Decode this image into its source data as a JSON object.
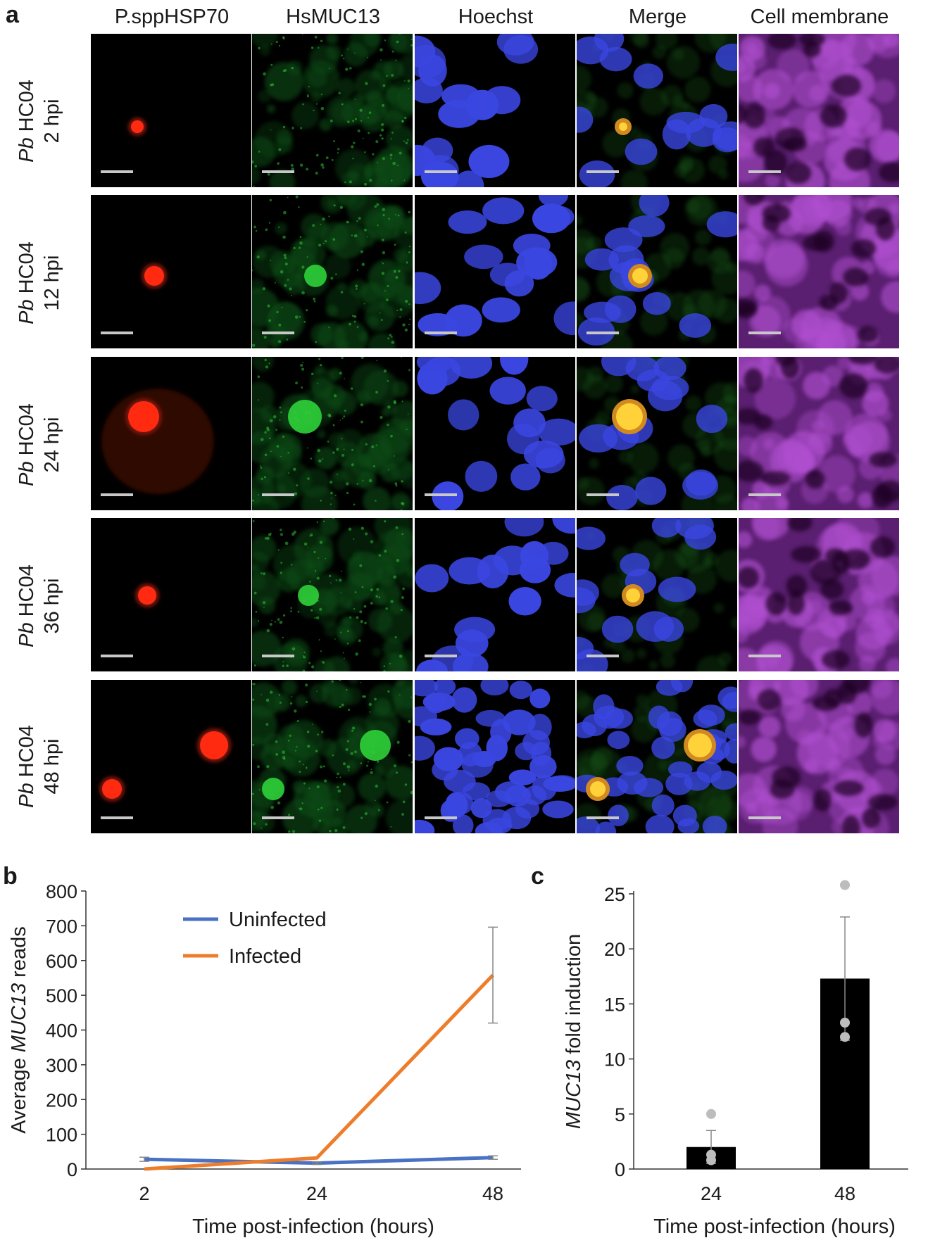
{
  "figure": {
    "panel_labels": {
      "a": "a",
      "b": "b",
      "c": "c"
    },
    "columns": [
      "P.sppHSP70",
      "HsMUC13",
      "Hoechst",
      "Merge",
      "Cell membrane"
    ],
    "rows": [
      {
        "organism": "Pb",
        "strain": "HC04",
        "time": "2 hpi"
      },
      {
        "organism": "Pb",
        "strain": "HC04",
        "time": "12 hpi"
      },
      {
        "organism": "Pb",
        "strain": "HC04",
        "time": "24 hpi"
      },
      {
        "organism": "Pb",
        "strain": "HC04",
        "time": "36 hpi"
      },
      {
        "organism": "Pb",
        "strain": "HC04",
        "time": "48 hpi"
      }
    ],
    "channel_colors": {
      "parasite": "#ff2a10",
      "muc13": "#2fd23a",
      "nuclei": "#3a46e0",
      "membrane": "#b050d0",
      "scale_bar": "#c8c8c8"
    }
  },
  "chart_data": [
    {
      "type": "line",
      "ylabel_parts": [
        "Average ",
        "MUC13",
        " reads"
      ],
      "xlabel": "Time post-infection (hours)",
      "ylim": [
        0,
        800
      ],
      "yticks": [
        0,
        100,
        200,
        300,
        400,
        500,
        600,
        700,
        800
      ],
      "x": [
        2,
        24,
        48
      ],
      "xtick_labels": [
        "2",
        "24",
        "48"
      ],
      "legend_position": "top-center",
      "series": [
        {
          "name": "Uninfected",
          "color": "#4a72c4",
          "values": [
            28,
            17,
            33
          ],
          "errors": [
            6,
            4,
            5
          ]
        },
        {
          "name": "Infected",
          "color": "#ee7d2b",
          "values": [
            0,
            32,
            558
          ],
          "errors": [
            0,
            0,
            138
          ]
        }
      ]
    },
    {
      "type": "bar",
      "ylabel_parts": [
        "MUC13",
        " fold induction"
      ],
      "xlabel": "Time post-infection (hours)",
      "categories": [
        "24",
        "48"
      ],
      "values": [
        2.0,
        17.3
      ],
      "errors": [
        1.5,
        5.6
      ],
      "points": [
        [
          5.0,
          1.3,
          0.8
        ],
        [
          25.8,
          13.3,
          12.0
        ]
      ],
      "ylim": [
        0,
        25
      ],
      "yticks": [
        0,
        5,
        10,
        15,
        20,
        25
      ],
      "bar_color": "#000000",
      "point_color": "#bdbdbd"
    }
  ]
}
